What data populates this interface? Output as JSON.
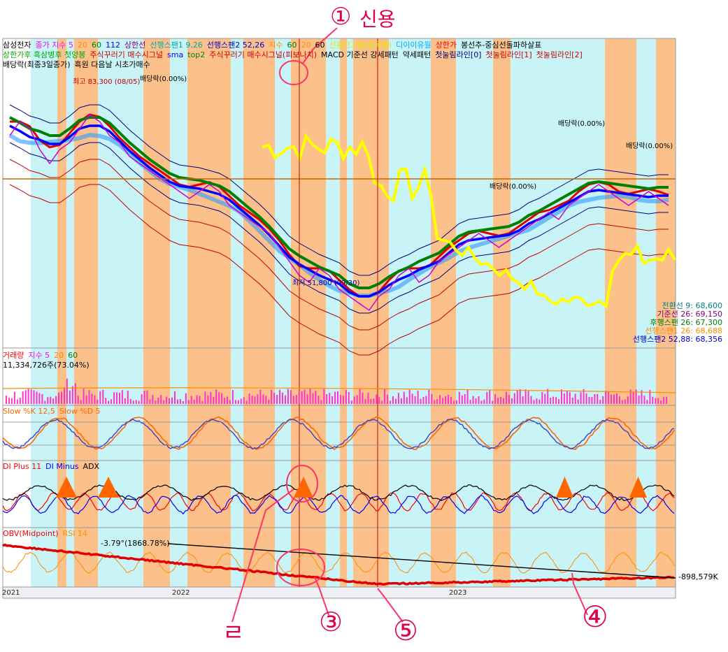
{
  "chart_data": [
    {
      "type": "line",
      "legend_row1": [
        {
          "text": "삼성전자",
          "color": "#000000"
        },
        {
          "text": "종가 지수 5",
          "color": "#ff00ff"
        },
        {
          "text": "20",
          "color": "#ff8c00"
        },
        {
          "text": "60",
          "color": "#008000"
        },
        {
          "text": "112",
          "color": "#0000ff"
        },
        {
          "text": "상한선",
          "color": "#800080"
        },
        {
          "text": "선행스팬1 9,26",
          "color": "#00aaaa"
        },
        {
          "text": "선행스팬2 52,26",
          "color": "#0000cc"
        },
        {
          "text": "지수",
          "color": "#ff8c00"
        },
        {
          "text": "60",
          "color": "#008000"
        },
        {
          "text": "20",
          "color": "#ff8c00"
        },
        {
          "text": "60",
          "color": "#000000"
        },
        {
          "text": "신용잔고율(종목별)",
          "color": "#e6e600"
        },
        {
          "text": "디이이유월",
          "color": "#00aaff"
        },
        {
          "text": "상한가",
          "color": "#ff0000"
        },
        {
          "text": "봉선추-중심선돌파하살표",
          "color": "#000000"
        }
      ],
      "legend_row2": [
        {
          "text": "상한가후 흑삼병후 첫양봉",
          "color": "#00aa00"
        },
        {
          "text": "주식꾸러기 매수시그널",
          "color": "#c80000"
        },
        {
          "text": "sma",
          "color": "#0000ff"
        },
        {
          "text": "top2",
          "color": "#008000"
        },
        {
          "text": "주식꾸러기 매수시그널(피보나치)",
          "color": "#c80000"
        },
        {
          "text": "MACD 기준선 강세패턴",
          "color": "#000000"
        },
        {
          "text": "약세패턴",
          "color": "#000000"
        },
        {
          "text": "첫눌림라인[0]",
          "color": "#000080"
        },
        {
          "text": "첫눌림라인[1]",
          "color": "#c80000"
        },
        {
          "text": "첫눌림라인[2]",
          "color": "#c80000"
        }
      ],
      "legend_row3": [
        {
          "text": "배당락(최종3일종가)",
          "color": "#000000"
        },
        {
          "text": "흑원 다음날 시초가매수",
          "color": "#000000"
        }
      ],
      "annotations": {
        "high": "최고 83,300 (08/05)",
        "low": "최저 51,800 (09/30)",
        "dividend": "배당락(0.00%)"
      },
      "right_values": [
        {
          "text": "전환선 9: 68,600",
          "color": "#008080"
        },
        {
          "text": "기준선 26: 69,150",
          "color": "#800080"
        },
        {
          "text": "후행스팬 26: 67,300",
          "color": "#008000"
        },
        {
          "text": "선행스팬1 26: 68,688",
          "color": "#ff8c00"
        },
        {
          "text": "선행스팬2 52,88: 68,356",
          "color": "#0000cc"
        }
      ],
      "x_ticks": [
        "2021",
        "2022",
        "2023"
      ],
      "series_close": [
        78,
        80,
        79,
        76,
        74,
        76,
        77,
        79,
        81,
        80,
        78,
        77,
        75,
        74,
        73,
        72,
        71,
        70,
        69,
        70,
        71,
        70,
        68,
        67,
        66,
        65,
        64,
        62,
        60,
        58,
        57,
        59,
        58,
        56,
        55,
        54,
        53,
        55,
        56,
        58,
        59,
        57,
        58,
        60,
        61,
        62,
        63,
        64,
        63,
        62,
        63,
        64,
        65,
        66,
        67,
        66,
        68,
        69,
        70,
        71,
        70,
        69,
        68,
        69,
        70,
        69,
        68
      ]
    },
    {
      "type": "bar",
      "title": "거래량",
      "legend": [
        {
          "text": "지수 5",
          "color": "#ff00ff"
        },
        {
          "text": "20",
          "color": "#ff8c00"
        },
        {
          "text": "60",
          "color": "#008000"
        }
      ],
      "value_label": "11,334,726주(73.04%)"
    },
    {
      "type": "line",
      "legend": [
        {
          "text": "Slow %K 12,5",
          "color": "#ff6600"
        },
        {
          "text": "Slow %D 5",
          "color": "#ff6600"
        }
      ]
    },
    {
      "type": "line",
      "legend": [
        {
          "text": "DI Plus 11",
          "color": "#ff0000"
        },
        {
          "text": "DI Minus",
          "color": "#0000ff"
        },
        {
          "text": "ADX",
          "color": "#000000"
        }
      ]
    },
    {
      "type": "line",
      "legend": [
        {
          "text": "OBV(Midpoint)",
          "color": "#ff0000"
        },
        {
          "text": "RSI 14",
          "color": "#ff8c00"
        }
      ],
      "left_value": "-3.79°(1868.78%)",
      "right_value": "-898,579K"
    }
  ],
  "handwritten": {
    "n1": "①",
    "n1_text": "신용",
    "n2": "ㄹ",
    "n3": "③",
    "n4": "④",
    "n5": "⑤"
  },
  "colors": {
    "band_orange": "#fcc08a",
    "band_cyan": "#c8f4f8",
    "panel_border": "#999999",
    "marker": "#ff3366"
  }
}
